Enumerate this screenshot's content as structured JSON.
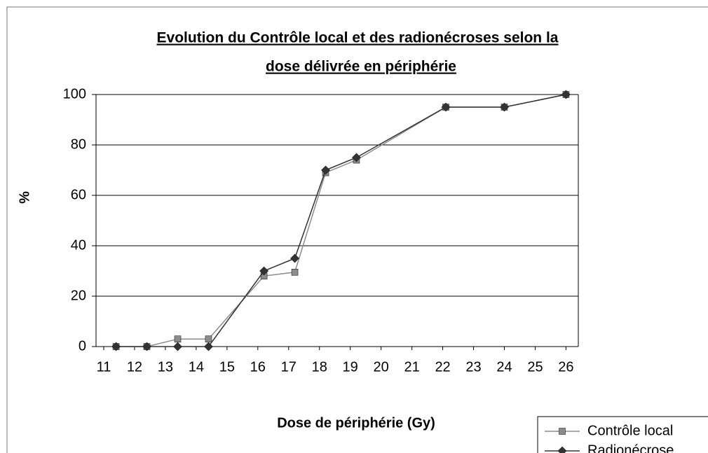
{
  "chart_data": {
    "type": "line",
    "title": [
      "Evolution du Contrôle local et des radionécroses selon la",
      "dose délivrée en périphérie"
    ],
    "x_label": "Dose de périphérie (Gy)",
    "y_label": "%",
    "x": [
      11.4,
      12.4,
      13.4,
      14.4,
      16.2,
      17.2,
      18.2,
      19.2,
      22.1,
      24,
      26
    ],
    "series": [
      {
        "name": "Contrôle local",
        "color": "#8c8c8c",
        "marker": "square",
        "values": [
          0,
          0,
          3,
          3,
          28,
          29.5,
          69,
          74,
          95,
          95,
          100
        ]
      },
      {
        "name": "Radionécrose",
        "color": "#333333",
        "marker": "diamond",
        "values": [
          0,
          0,
          0,
          0,
          30,
          35,
          70,
          75,
          95,
          95,
          100
        ]
      }
    ],
    "xlim": [
      10.75,
      26.4
    ],
    "xticks": [
      11,
      12,
      13,
      14,
      15,
      16,
      17,
      18,
      19,
      20,
      21,
      22,
      23,
      24,
      25,
      26
    ],
    "ylim": [
      0,
      100
    ],
    "yticks": [
      0,
      20,
      40,
      60,
      80,
      100
    ],
    "grid": true,
    "legend": "bottom-right"
  }
}
